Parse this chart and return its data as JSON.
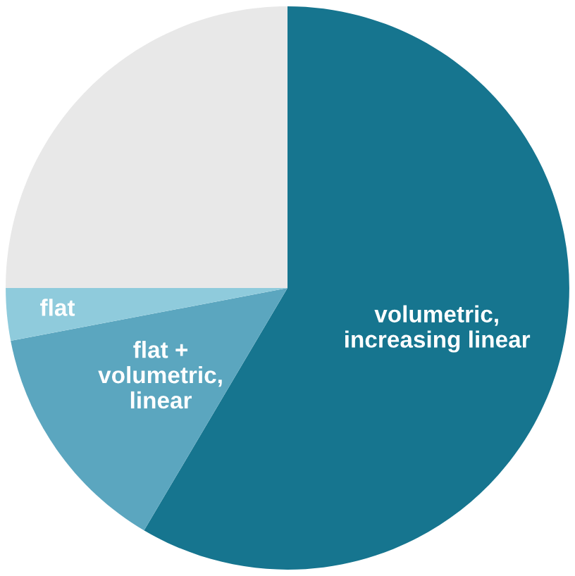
{
  "chart_data": {
    "type": "pie",
    "categories": [
      "volumetric,\nincreasing linear",
      "flat +\nvolumetric,\nlinear",
      "flat",
      null
    ],
    "values": [
      58.5,
      13.5,
      3,
      25
    ],
    "colors": [
      "#16758f",
      "#5ba6bf",
      "#8fcbdc",
      "#e8e8e8"
    ]
  }
}
